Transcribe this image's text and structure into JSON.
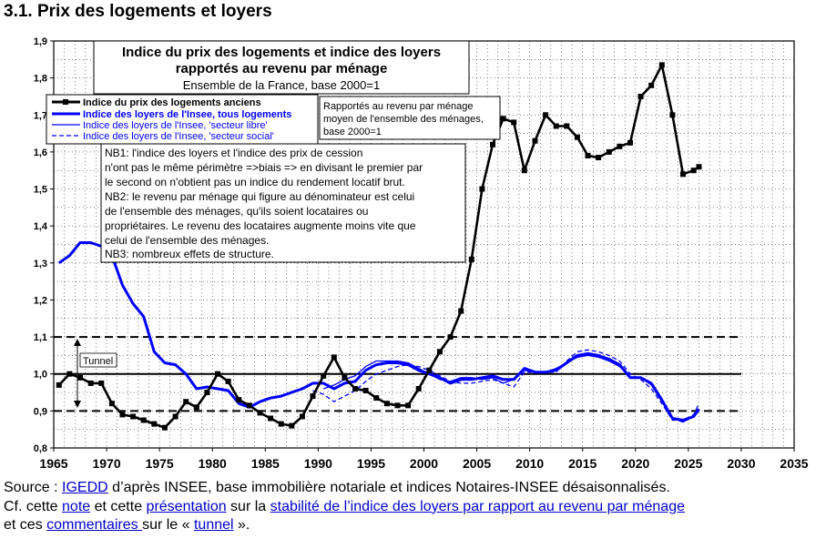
{
  "page_title": "3.1. Prix des logements et loyers",
  "colors": {
    "accent": "#0000ff",
    "black": "#000000",
    "link": "#0000cc"
  },
  "chart_data": {
    "type": "line",
    "title_lines": [
      "Indice du prix des logements et indice des loyers",
      "rapportés au revenu par ménage"
    ],
    "subtitle": "Ensemble de la France, base 2000=1",
    "xlim": [
      1965,
      2035
    ],
    "ylim": [
      0.8,
      1.9
    ],
    "x_ticks": [
      "1965",
      "1970",
      "1975",
      "1980",
      "1985",
      "1990",
      "1995",
      "2000",
      "2005",
      "2010",
      "2015",
      "2020",
      "2025",
      "2030",
      "2035"
    ],
    "y_ticks": [
      "0,8",
      "0,9",
      "1,0",
      "1,1",
      "1,2",
      "1,3",
      "1,4",
      "1,5",
      "1,6",
      "1,7",
      "1,8",
      "1,9"
    ],
    "reference_lines": [
      {
        "y": 1.1,
        "style": "dashed"
      },
      {
        "y": 1.0,
        "style": "solid"
      },
      {
        "y": 0.9,
        "style": "dashed"
      }
    ],
    "tunnel_label": "Tunnel",
    "legend": [
      {
        "label": "Indice du prix des logements anciens",
        "style": "black-square-markers"
      },
      {
        "label": "Indice des loyers de l'Insee, tous logements",
        "style": "blue-thick"
      },
      {
        "label": "Indice des loyers de l'Insee, 'secteur libre'",
        "style": "blue-thin"
      },
      {
        "label": "Indice des loyers de l'Insee, 'secteur social'",
        "style": "blue-dashed"
      }
    ],
    "note_denominator": [
      "Rapportés au revenu par ménage",
      "moyen de l'ensemble des ménages,",
      "base 2000=1"
    ],
    "notes": [
      "NB1: l'indice des loyers et l'indice des prix de cession",
      "n'ont pas le même périmètre =>biais => en divisant le premier par",
      "le second on n'obtient pas un indice du rendement locatif brut.",
      "NB2: le revenu par ménage qui figure au dénominateur est celui",
      "de l'ensemble des ménages, qu'ils soient locataires ou",
      "propriétaires.  Le revenu des locataires augmente moins vite que",
      "celui de l'ensemble des ménages.",
      "NB3: nombreux effets de structure."
    ],
    "series": [
      {
        "name": "Indice du prix des logements anciens",
        "x": [
          1965.5,
          1966.5,
          1967.5,
          1968.5,
          1969.5,
          1970.5,
          1971.5,
          1972.5,
          1973.5,
          1974.5,
          1975.5,
          1976.5,
          1977.5,
          1978.5,
          1979.5,
          1980.5,
          1981.5,
          1982.5,
          1983.5,
          1984.5,
          1985.5,
          1986.5,
          1987.5,
          1988.5,
          1989.5,
          1990.5,
          1991.5,
          1992.5,
          1993.5,
          1994.5,
          1995.5,
          1996.5,
          1997.5,
          1998.5,
          1999.5,
          2000.5,
          2001.5,
          2002.5,
          2003.5,
          2004.5,
          2005.5,
          2006.5,
          2007.5,
          2008.5,
          2009.5,
          2010.5,
          2011.5,
          2012.5,
          2013.5,
          2014.5,
          2015.5,
          2016.5,
          2017.5,
          2018.5,
          2019.5,
          2020.5,
          2021.5,
          2022.5,
          2023.5,
          2024.5,
          2025.5,
          2026.0
        ],
        "values": [
          0.97,
          1.0,
          0.99,
          0.975,
          0.975,
          0.92,
          0.89,
          0.885,
          0.875,
          0.865,
          0.855,
          0.885,
          0.925,
          0.91,
          0.95,
          1.0,
          0.98,
          0.93,
          0.915,
          0.895,
          0.88,
          0.865,
          0.86,
          0.885,
          0.94,
          0.995,
          1.045,
          0.99,
          0.96,
          0.955,
          0.935,
          0.92,
          0.915,
          0.915,
          0.96,
          1.01,
          1.06,
          1.1,
          1.17,
          1.31,
          1.5,
          1.62,
          1.69,
          1.68,
          1.55,
          1.63,
          1.7,
          1.67,
          1.67,
          1.64,
          1.59,
          1.585,
          1.6,
          1.615,
          1.625,
          1.75,
          1.78,
          1.835,
          1.7,
          1.54,
          1.55,
          1.56
        ]
      },
      {
        "name": "Indice des loyers de l'Insee, tous logements",
        "x": [
          1965.5,
          1966.5,
          1967.5,
          1968.5,
          1969.5,
          1970.5,
          1971.5,
          1972.5,
          1973.5,
          1974.5,
          1975.5,
          1976.5,
          1977.5,
          1978.5,
          1979.5,
          1980.5,
          1981.5,
          1982.5,
          1983.5,
          1984.5,
          1985.5,
          1986.5,
          1987.5,
          1988.5,
          1989.5,
          1990.5,
          1991.5,
          1992.5,
          1993.5,
          1994.5,
          1995.5,
          1996.5,
          1997.5,
          1998.5,
          1999.5,
          2000.5,
          2001.5,
          2002.5,
          2003.5,
          2004.5,
          2005.5,
          2006.5,
          2007.5,
          2008.5,
          2009.5,
          2010.5,
          2011.5,
          2012.5,
          2013.5,
          2014.5,
          2015.5,
          2016.5,
          2017.5,
          2018.5,
          2019.5,
          2020.5,
          2021.5,
          2022.5,
          2023.5,
          2024.5,
          2025.5,
          2026.0
        ],
        "values": [
          1.3,
          1.32,
          1.355,
          1.355,
          1.345,
          1.32,
          1.24,
          1.19,
          1.155,
          1.06,
          1.03,
          1.025,
          1.0,
          0.96,
          0.965,
          0.96,
          0.955,
          0.92,
          0.91,
          0.925,
          0.935,
          0.94,
          0.95,
          0.96,
          0.975,
          0.975,
          0.96,
          0.975,
          0.98,
          1.01,
          1.025,
          1.03,
          1.03,
          1.025,
          1.01,
          1.0,
          0.99,
          0.975,
          0.985,
          0.985,
          0.99,
          0.995,
          0.985,
          0.985,
          1.015,
          1.005,
          1.005,
          1.01,
          1.03,
          1.05,
          1.055,
          1.05,
          1.04,
          1.025,
          0.99,
          0.99,
          0.975,
          0.93,
          0.88,
          0.875,
          0.885,
          0.905
        ]
      },
      {
        "name": "Indice des loyers de l'Insee, 'secteur libre'",
        "x": [
          1990.5,
          1991.5,
          1992.5,
          1993.5,
          1994.5,
          1995.5,
          1996.5,
          1997.5,
          1998.5,
          1999.5,
          2000.5,
          2001.5,
          2002.5,
          2003.5,
          2004.5,
          2005.5,
          2006.5,
          2007.5,
          2008.5,
          2009.5,
          2010.5,
          2011.5,
          2012.5,
          2013.5,
          2014.5,
          2015.5,
          2016.5,
          2017.5,
          2018.5,
          2019.5,
          2020.5,
          2021.5,
          2022.5,
          2023.5,
          2024.5,
          2025.5,
          2026.0
        ],
        "values": [
          0.96,
          0.97,
          0.985,
          0.995,
          1.02,
          1.035,
          1.035,
          1.035,
          1.03,
          1.015,
          1.0,
          0.985,
          0.98,
          0.99,
          0.99,
          0.985,
          0.99,
          0.975,
          0.985,
          1.01,
          1.005,
          1.005,
          1.015,
          1.03,
          1.045,
          1.05,
          1.045,
          1.035,
          1.02,
          0.99,
          0.99,
          0.97,
          0.925,
          0.88,
          0.87,
          0.885,
          0.9
        ]
      },
      {
        "name": "Indice des loyers de l'Insee, 'secteur social'",
        "x": [
          1989.5,
          1990.5,
          1991.5,
          1992.5,
          1993.5,
          1994.5,
          1995.5,
          1996.5,
          1997.5,
          1998.5,
          1999.5,
          2000.5,
          2001.5,
          2002.5,
          2003.5,
          2004.5,
          2005.5,
          2006.5,
          2007.5,
          2008.5,
          2009.5,
          2010.5,
          2011.5,
          2012.5,
          2013.5,
          2014.5,
          2015.5,
          2016.5,
          2017.5,
          2018.5,
          2019.5,
          2020.5,
          2021.5,
          2022.5,
          2023.5,
          2024.5,
          2025.5,
          2026.0
        ],
        "values": [
          0.955,
          0.945,
          0.925,
          0.94,
          0.955,
          0.98,
          1.0,
          1.01,
          1.02,
          1.025,
          1.02,
          1.01,
          0.995,
          0.98,
          0.975,
          0.975,
          0.98,
          0.985,
          0.975,
          0.965,
          1.005,
          1.005,
          1.005,
          1.005,
          1.035,
          1.06,
          1.065,
          1.06,
          1.05,
          1.035,
          1.0,
          0.985,
          0.96,
          0.92,
          0.875,
          0.875,
          0.89,
          0.92
        ]
      }
    ]
  },
  "footer": {
    "line1_prefix": "Source : ",
    "link_igedd": "IGEDD",
    "line1_rest": " d’après INSEE, base immobilière notariale et indices Notaires-INSEE désaisonnalisés.",
    "line2_a": "Cf. cette ",
    "link_note": "note",
    "line2_b": " et cette ",
    "link_presentation": "présentation",
    "line2_c": " sur la ",
    "link_stabilite": "stabilité de l’indice des loyers par rapport au revenu par ménage",
    "line3_a": "et ces ",
    "link_commentaires": "commentaires ",
    "line3_b": "sur le « ",
    "link_tunnel": "tunnel",
    "line3_c": " »."
  }
}
